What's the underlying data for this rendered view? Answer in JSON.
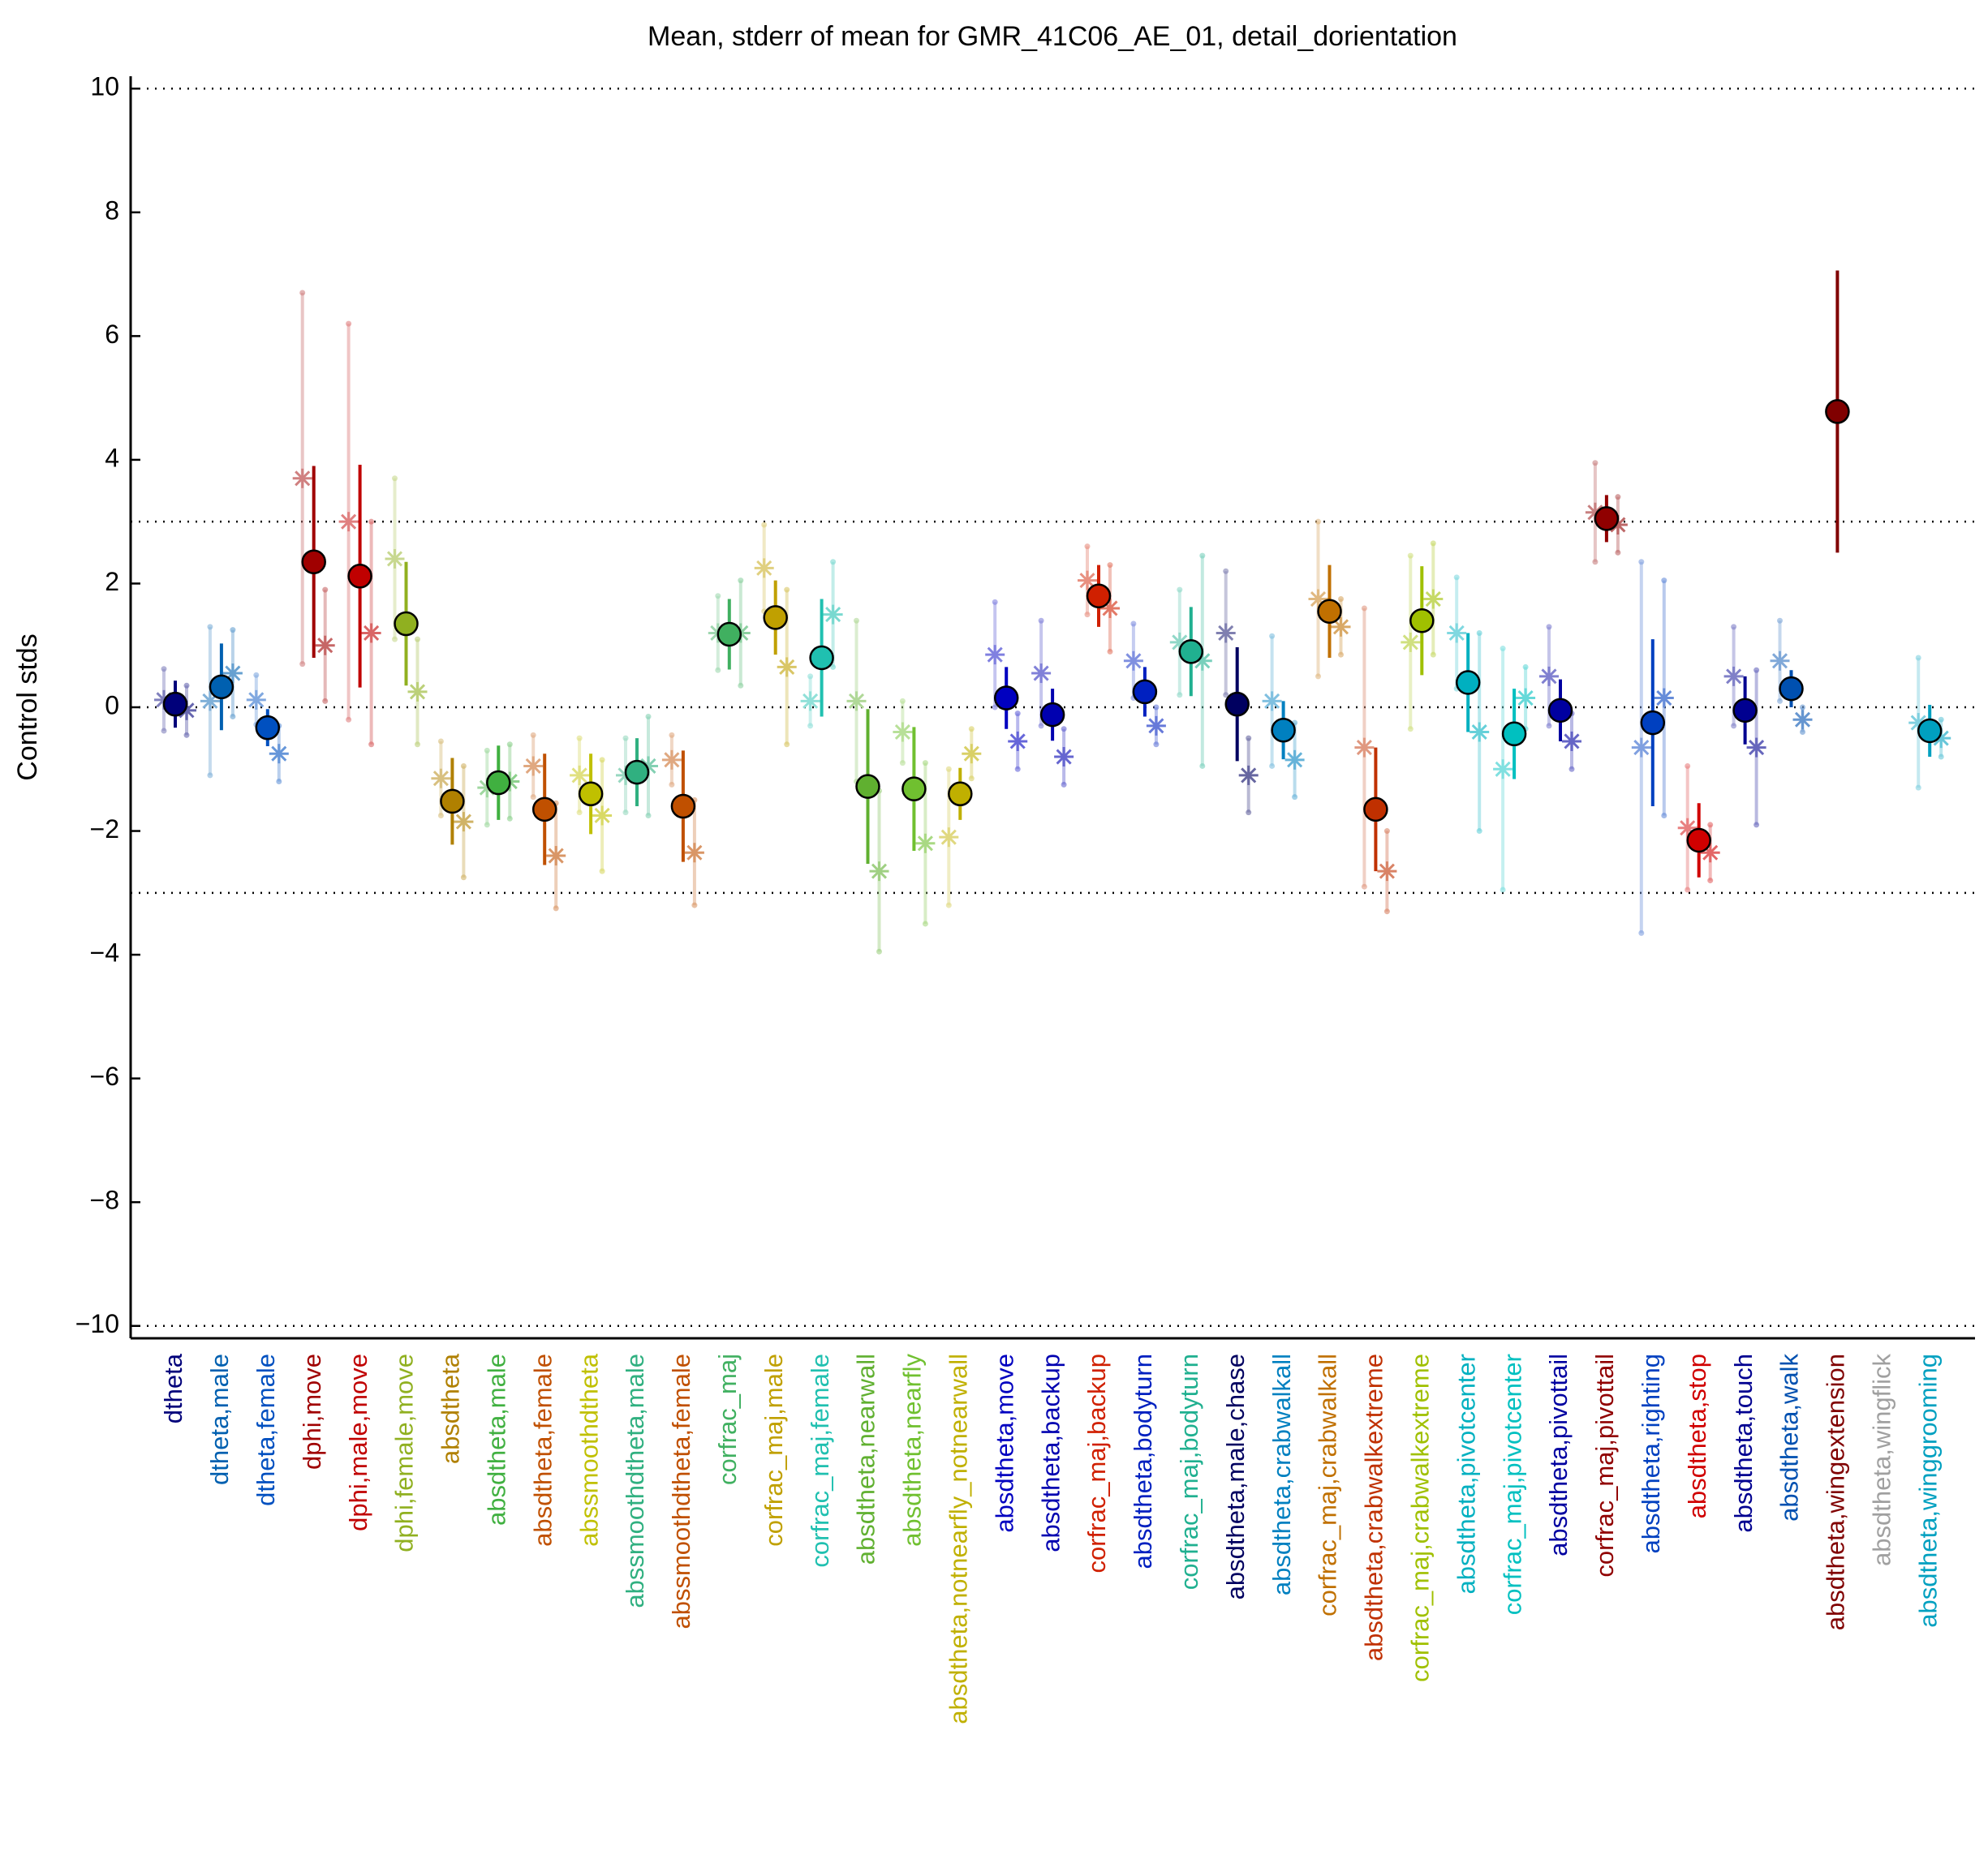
{
  "chart_data": {
    "type": "errorbar",
    "title": "Mean, stderr of mean for GMR_41C06_AE_01, detail_dorientation",
    "y_label": "Control stds",
    "categories": [
      "dtheta",
      "dtheta,male",
      "dtheta,female",
      "dphi,move",
      "dphi,male,move",
      "dphi,female,move",
      "absdtheta",
      "absdtheta,male",
      "absdtheta,female",
      "abssmoothdtheta",
      "abssmoothdtheta,male",
      "abssmoothdtheta,female",
      "corfrac_maj",
      "corfrac_maj,male",
      "corfrac_maj,female",
      "absdtheta,nearwall",
      "absdtheta,nearfly",
      "absdtheta,notnearfly_notnearwall",
      "absdtheta,move",
      "absdtheta,backup",
      "corfrac_maj,backup",
      "absdtheta,bodyturn",
      "corfrac_maj,bodyturn",
      "absdtheta,male,chase",
      "absdtheta,crabwalkall",
      "corfrac_maj,crabwalkall",
      "absdtheta,crabwalkextreme",
      "corfrac_maj,crabwalkextreme",
      "absdtheta,pivotcenter",
      "corfrac_maj,pivotcenter",
      "absdtheta,pivottail",
      "corfrac_maj,pivottail",
      "absdtheta,righting",
      "absdtheta,stop",
      "absdtheta,touch",
      "absdtheta,walk",
      "absdtheta,wingextension",
      "absdtheta,wingflick",
      "absdtheta,winggrooming"
    ],
    "colors": [
      "#00007a",
      "#0060b0",
      "#0050c0",
      "#a00000",
      "#c00000",
      "#90b020",
      "#b08000",
      "#40b040",
      "#c05000",
      "#c0c000",
      "#30b080",
      "#c05000",
      "#40b060",
      "#c0a000",
      "#20c0b0",
      "#60b030",
      "#70c030",
      "#c0b000",
      "#0000c0",
      "#0000b0",
      "#d02000",
      "#0020c0",
      "#20b090",
      "#000060",
      "#0080c0",
      "#c07000",
      "#c03000",
      "#a0c000",
      "#00b0c0",
      "#00c0c0",
      "#0000a0",
      "#900000",
      "#0040c0",
      "#d00000",
      "#000090",
      "#0050b0",
      "#800000",
      "#a0a0a0",
      "#00a0c0"
    ],
    "values": [
      0.05,
      0.33,
      -0.33,
      2.35,
      2.12,
      1.35,
      -1.52,
      -1.22,
      -1.65,
      -1.4,
      -1.05,
      -1.6,
      1.18,
      1.45,
      0.8,
      -1.28,
      -1.32,
      -1.4,
      0.15,
      -0.12,
      1.8,
      0.25,
      0.9,
      0.05,
      -0.37,
      1.55,
      -1.65,
      1.4,
      0.4,
      -0.43,
      -0.05,
      3.05,
      -0.25,
      -2.15,
      -0.05,
      0.3,
      4.78,
      null,
      -0.38
    ],
    "errors": [
      0.38,
      0.7,
      0.3,
      1.55,
      1.8,
      1.0,
      0.7,
      0.6,
      0.9,
      0.65,
      0.55,
      0.9,
      0.57,
      0.6,
      0.95,
      1.25,
      1.0,
      0.42,
      0.5,
      0.42,
      0.5,
      0.4,
      0.72,
      0.92,
      0.47,
      0.75,
      1.0,
      0.88,
      0.8,
      0.73,
      0.5,
      0.38,
      1.35,
      0.6,
      0.55,
      0.3,
      2.28,
      null,
      0.42
    ],
    "male_values": [
      0.12,
      0.1,
      0.12,
      3.7,
      3.0,
      2.4,
      -1.15,
      -1.3,
      -0.95,
      -1.1,
      -1.1,
      -0.85,
      1.2,
      2.25,
      0.1,
      0.1,
      -0.4,
      -2.1,
      0.85,
      0.55,
      2.05,
      0.75,
      1.05,
      1.2,
      0.1,
      1.75,
      -0.65,
      1.05,
      1.2,
      -1.0,
      0.5,
      3.15,
      -0.65,
      -1.95,
      0.5,
      0.75,
      null,
      null,
      -0.25
    ],
    "male_errors": [
      0.5,
      1.2,
      0.4,
      3.0,
      3.2,
      1.3,
      0.6,
      0.6,
      0.5,
      0.6,
      0.6,
      0.4,
      0.6,
      0.7,
      0.4,
      1.3,
      0.5,
      1.1,
      0.85,
      0.85,
      0.55,
      0.6,
      0.85,
      1.0,
      1.05,
      1.25,
      2.25,
      1.4,
      0.9,
      1.95,
      0.8,
      0.8,
      3.0,
      1.0,
      0.8,
      0.65,
      null,
      null,
      1.05
    ],
    "female_values": [
      -0.05,
      0.55,
      -0.75,
      1.0,
      1.2,
      0.25,
      -1.85,
      -1.2,
      -2.4,
      -1.75,
      -0.95,
      -2.35,
      1.2,
      0.65,
      1.5,
      -2.65,
      -2.2,
      -0.75,
      -0.55,
      -0.8,
      1.6,
      -0.3,
      0.75,
      -1.1,
      -0.85,
      1.3,
      -2.65,
      1.75,
      -0.4,
      0.15,
      -0.55,
      2.95,
      0.15,
      -2.35,
      -0.65,
      -0.2,
      null,
      null,
      -0.5
    ],
    "female_errors": [
      0.4,
      0.7,
      0.45,
      0.9,
      1.8,
      0.85,
      0.9,
      0.6,
      0.85,
      0.9,
      0.8,
      0.85,
      0.85,
      1.25,
      0.85,
      1.3,
      1.3,
      0.4,
      0.45,
      0.45,
      0.7,
      0.3,
      1.7,
      0.6,
      0.6,
      0.45,
      0.65,
      0.9,
      1.6,
      0.5,
      0.45,
      0.45,
      1.9,
      0.45,
      1.25,
      0.2,
      null,
      null,
      0.3
    ],
    "ylim": [
      -10.2,
      10.2
    ],
    "yticks": [
      {
        "value": -10,
        "label": "−10"
      },
      {
        "value": -8,
        "label": "−8"
      },
      {
        "value": -6,
        "label": "−6"
      },
      {
        "value": -4,
        "label": "−4"
      },
      {
        "value": -2,
        "label": "−2"
      },
      0,
      2,
      4,
      6,
      8,
      10
    ],
    "hlines": [
      -10,
      -3,
      0,
      3,
      10
    ]
  }
}
